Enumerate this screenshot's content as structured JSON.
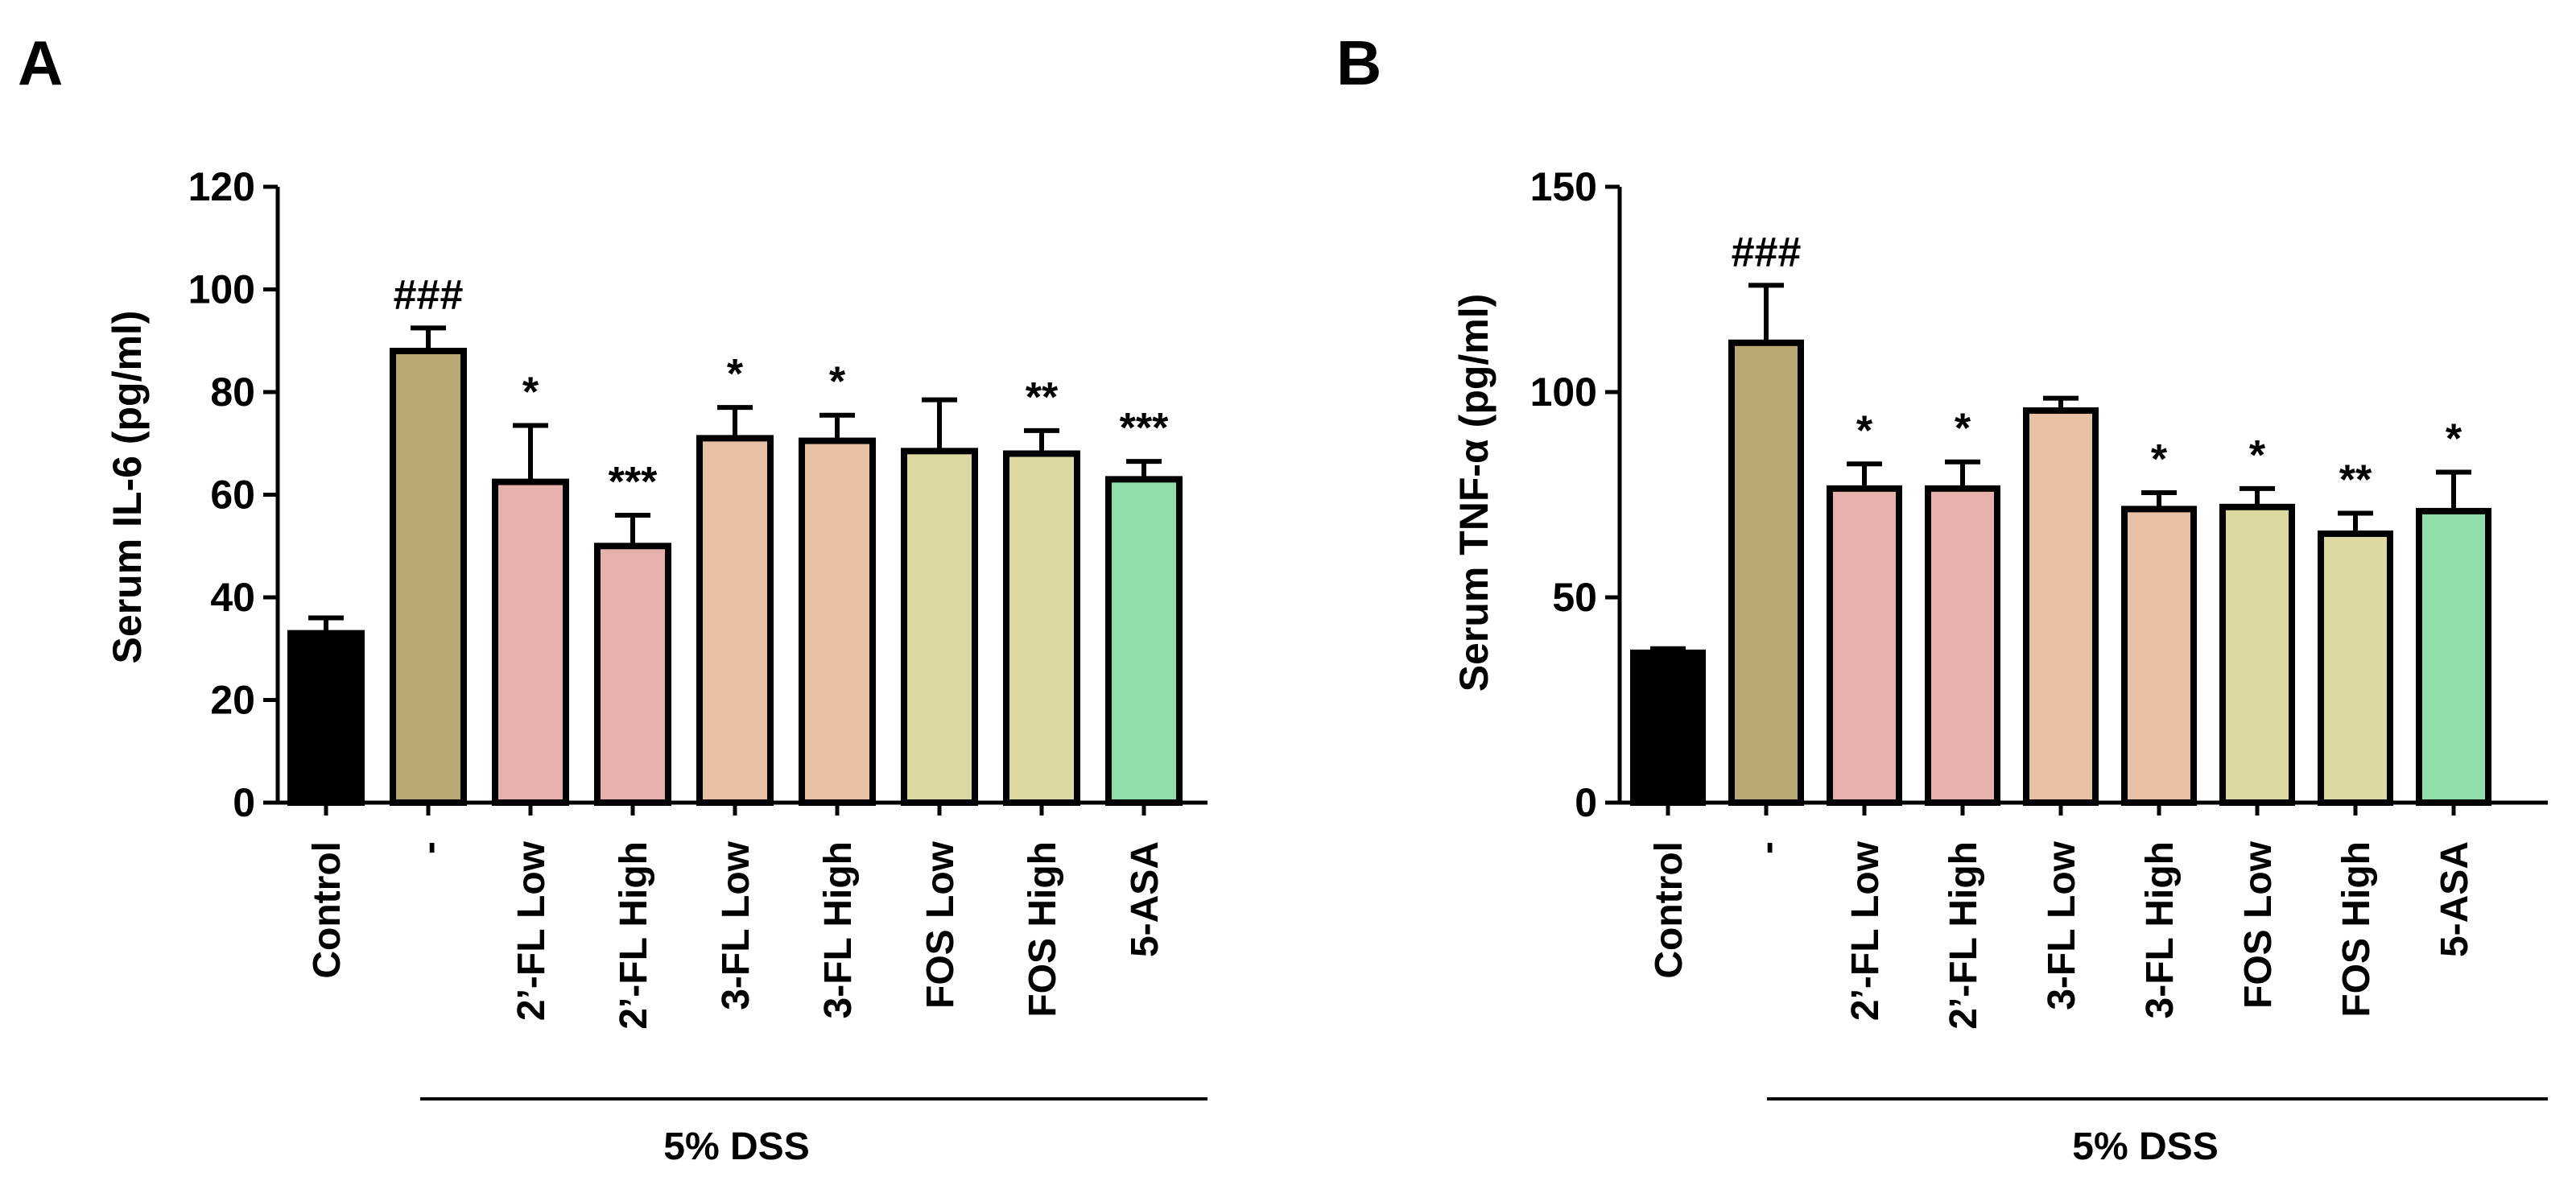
{
  "chart_data": [
    {
      "type": "bar",
      "panel": "A",
      "title": "",
      "ylabel": "Serum IL-6 (pg/ml)",
      "xlabel": "",
      "ylim": [
        0,
        120
      ],
      "yticks": [
        "0",
        "20",
        "40",
        "60",
        "80",
        "100",
        "120"
      ],
      "group_label": "5% DSS",
      "categories": [
        "Control",
        "-",
        "2’-FL Low",
        "2’-FL High",
        "3-FL Low",
        "3-FL High",
        "FOS Low",
        "FOS High",
        "5-ASA"
      ],
      "values": [
        33,
        88,
        62.5,
        50,
        71,
        70.5,
        68.5,
        68,
        63
      ],
      "errors": [
        3,
        4.5,
        11,
        6,
        6,
        5,
        10,
        4.5,
        3.5
      ],
      "significance": [
        "",
        "###",
        "*",
        "***",
        "*",
        "*",
        "",
        "**",
        "***"
      ],
      "colors": [
        "#000000",
        "#b8a872",
        "#e6b0ac",
        "#e6b0ac",
        "#e8c0a4",
        "#e8c0a4",
        "#dcd9a0",
        "#dcd9a0",
        "#8fdeaa"
      ]
    },
    {
      "type": "bar",
      "panel": "B",
      "title": "",
      "ylabel": "Serum TNF-α (pg/ml)",
      "xlabel": "",
      "ylim": [
        0,
        150
      ],
      "yticks": [
        "0",
        "50",
        "100",
        "150"
      ],
      "group_label": "5% DSS",
      "categories": [
        "Control",
        "-",
        "2’-FL Low",
        "2’-FL High",
        "3-FL Low",
        "3-FL High",
        "FOS Low",
        "FOS High",
        "5-ASA"
      ],
      "values": [
        36.5,
        112,
        76.5,
        76.5,
        95.5,
        71.5,
        72,
        65.5,
        71
      ],
      "errors": [
        1,
        14,
        6,
        6.5,
        3,
        4,
        4.5,
        5,
        9.5
      ],
      "significance": [
        "",
        "###",
        "*",
        "*",
        "",
        "*",
        "*",
        "**",
        "*"
      ],
      "colors": [
        "#000000",
        "#b8a872",
        "#e6b0ac",
        "#e6b0ac",
        "#e8c0a4",
        "#e8c0a4",
        "#dcd9a0",
        "#dcd9a0",
        "#8fdeaa"
      ]
    }
  ]
}
